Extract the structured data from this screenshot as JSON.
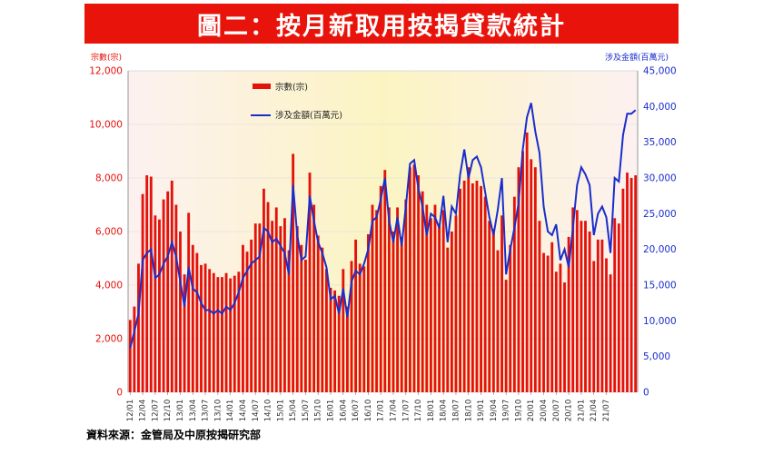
{
  "header": {
    "title": "圖二：按月新取用按揭貸款統計"
  },
  "footer": {
    "source": "資料來源：金管局及中原按揭研究部"
  },
  "colors": {
    "banner": "#e8140c",
    "bar": "#e3120b",
    "line": "#1a2ecc"
  },
  "chart_data": {
    "type": "bar",
    "ylabel": "宗數(宗)",
    "y2label": "涉及金額(百萬元)",
    "ylim": [
      0,
      12000
    ],
    "y2lim": [
      0,
      45000
    ],
    "yticks": [
      "0",
      "2,000",
      "4,000",
      "6,000",
      "8,000",
      "10,000",
      "12,000"
    ],
    "y2ticks": [
      "0",
      "5,000",
      "10,000",
      "15,000",
      "20,000",
      "25,000",
      "30,000",
      "35,000",
      "40,000",
      "45,000"
    ],
    "start": "2012-01",
    "x_tick_labels": [
      "12/01",
      "12/04",
      "12/07",
      "12/10",
      "13/01",
      "13/04",
      "13/07",
      "13/10",
      "14/01",
      "14/04",
      "14/07",
      "14/10",
      "15/01",
      "15/04",
      "15/07",
      "15/10",
      "16/01",
      "16/04",
      "16/07",
      "16/10",
      "17/01",
      "17/04",
      "17/07",
      "17/10",
      "18/01",
      "18/04",
      "18/07",
      "18/10",
      "19/01",
      "19/04",
      "19/07",
      "19/10",
      "20/01",
      "20/04",
      "20/07",
      "20/10",
      "21/01",
      "21/04",
      "21/07"
    ],
    "legend": [
      "宗數(宗)",
      "涉及金額(百萬元)"
    ],
    "legend_position": "top-left",
    "grid": true,
    "series": [
      {
        "name": "宗數(宗)",
        "type": "bar",
        "axis": "left",
        "values": [
          2700,
          3200,
          4800,
          7400,
          8100,
          8050,
          6600,
          6450,
          7200,
          7500,
          7900,
          7000,
          6000,
          4400,
          6700,
          5500,
          5200,
          4750,
          4800,
          4600,
          4450,
          4300,
          4300,
          4450,
          4250,
          4350,
          4500,
          5500,
          5250,
          5700,
          6300,
          6300,
          7600,
          7100,
          6400,
          6900,
          6200,
          6500,
          5300,
          8900,
          6200,
          5500,
          4950,
          8200,
          7000,
          5850,
          5400,
          4600,
          3900,
          3800,
          3600,
          4600,
          3200,
          4900,
          5700,
          4800,
          4700,
          5900,
          7000,
          6800,
          7700,
          8300,
          6900,
          6000,
          6900,
          5800,
          7200,
          8400,
          8500,
          8100,
          7500,
          7000,
          6500,
          7000,
          6200,
          6800,
          5400,
          6000,
          6600,
          7600,
          7900,
          8400,
          7800,
          7900,
          7700,
          7300,
          6400,
          6100,
          5300,
          6600,
          4200,
          5500,
          7300,
          8400,
          9000,
          9700,
          8700,
          8400,
          6400,
          5200,
          5100,
          5600,
          4500,
          4800,
          4100,
          5800,
          6900,
          6800,
          6400,
          6400,
          6000,
          4900,
          5700,
          5700,
          5000,
          4400,
          6500,
          6300,
          7600,
          8200,
          8000,
          8100
        ]
      },
      {
        "name": "涉及金額(百萬元)",
        "type": "line",
        "axis": "right",
        "values": [
          6200,
          8500,
          11000,
          18500,
          19500,
          20000,
          16000,
          16500,
          18000,
          19000,
          21000,
          19000,
          15500,
          12000,
          17500,
          14500,
          14000,
          12500,
          11500,
          11500,
          11000,
          11500,
          11000,
          12000,
          11500,
          12500,
          14000,
          16000,
          17000,
          18000,
          18500,
          19000,
          23000,
          22500,
          21000,
          21500,
          20500,
          19500,
          16500,
          29000,
          22000,
          18500,
          19000,
          27500,
          24000,
          21000,
          19500,
          17500,
          13000,
          13500,
          11000,
          14500,
          10500,
          15500,
          17000,
          16500,
          18000,
          20000,
          24000,
          24500,
          27000,
          30000,
          24000,
          21000,
          24500,
          20500,
          26000,
          32000,
          32500,
          28500,
          26000,
          22000,
          25000,
          24500,
          23000,
          27500,
          21000,
          26000,
          25000,
          30500,
          34000,
          30000,
          32500,
          33000,
          31500,
          28000,
          24500,
          22000,
          25500,
          30000,
          16500,
          20000,
          23000,
          26500,
          34000,
          38500,
          40500,
          36500,
          33500,
          26000,
          22500,
          22000,
          23500,
          18500,
          20000,
          17500,
          23000,
          29000,
          31500,
          30500,
          29000,
          22000,
          25000,
          26000,
          24500,
          19500,
          30000,
          29500,
          36000,
          39000,
          39000,
          39500
        ]
      }
    ]
  }
}
